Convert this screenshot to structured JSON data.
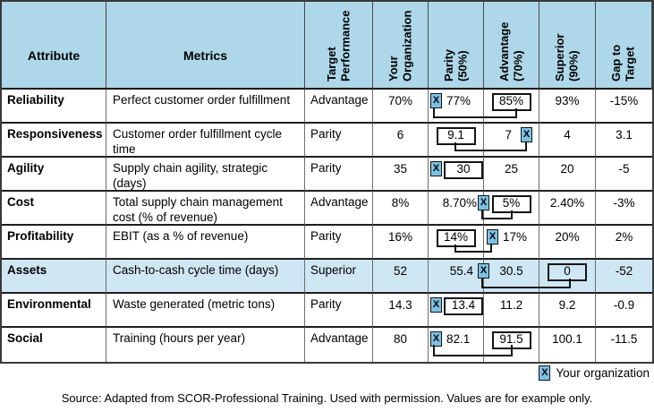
{
  "colors": {
    "header_bg": "#aed7e9",
    "highlight_row_bg": "#cfe6f3",
    "marker_bg": "#7cc1e4"
  },
  "table": {
    "headers": {
      "attribute": "Attribute",
      "metrics": "Metrics",
      "rotated": [
        "Target\nPerformance",
        "Your\nOrganization",
        "Parity\n(50%)",
        "Advantage\n(70%)",
        "Superior\n(90%)",
        "Gap to\nTarget"
      ]
    },
    "rows": [
      {
        "attribute": "Reliability",
        "metric": "Perfect customer order fulfillment",
        "target": "Advantage",
        "your_org": "70%",
        "parity": "77%",
        "advantage": "85%",
        "superior": "93%",
        "gap": "-15%",
        "your_position": "parity",
        "marker_side": "left",
        "target_box": "advantage",
        "highlighted": false
      },
      {
        "attribute": "Responsiveness",
        "metric": "Customer order fulfillment cycle time",
        "target": "Parity",
        "your_org": "6",
        "parity": "9.1",
        "advantage": "7",
        "superior": "4",
        "gap": "3.1",
        "your_position": "advantage",
        "marker_side": "right",
        "target_box": "parity",
        "highlighted": false
      },
      {
        "attribute": "Agility",
        "metric": "Supply chain agility, strategic (days)",
        "target": "Parity",
        "your_org": "35",
        "parity": "30",
        "advantage": "25",
        "superior": "20",
        "gap": "-5",
        "your_position": "parity",
        "marker_side": "left",
        "target_box": "parity",
        "highlighted": false
      },
      {
        "attribute": "Cost",
        "metric": "Total supply chain management cost (% of revenue)",
        "target": "Advantage",
        "your_org": "8%",
        "parity": "8.70%",
        "advantage": "5%",
        "superior": "2.40%",
        "gap": "-3%",
        "your_position": "parity",
        "marker_side": "right",
        "target_box": "advantage",
        "highlighted": false
      },
      {
        "attribute": "Profitability",
        "metric": "EBIT (as a % of revenue)",
        "target": "Parity",
        "your_org": "16%",
        "parity": "14%",
        "advantage": "17%",
        "superior": "20%",
        "gap": "2%",
        "your_position": "advantage",
        "marker_side": "left",
        "target_box": "parity",
        "highlighted": false
      },
      {
        "attribute": "Assets",
        "metric": "Cash-to-cash cycle time (days)",
        "target": "Superior",
        "your_org": "52",
        "parity": "55.4",
        "advantage": "30.5",
        "superior": "0",
        "gap": "-52",
        "your_position": "parity",
        "marker_side": "right",
        "target_box": "superior",
        "highlighted": true
      },
      {
        "attribute": "Environmental",
        "metric": "Waste generated (metric tons)",
        "target": "Parity",
        "your_org": "14.3",
        "parity": "13.4",
        "advantage": "11.2",
        "superior": "9.2",
        "gap": "-0.9",
        "your_position": "parity",
        "marker_side": "left",
        "target_box": "parity",
        "highlighted": false
      },
      {
        "attribute": "Social",
        "metric": "Training (hours per year)",
        "target": "Advantage",
        "your_org": "80",
        "parity": "82.1",
        "advantage": "91.5",
        "superior": "100.1",
        "gap": "-11.5",
        "your_position": "parity",
        "marker_side": "left",
        "target_box": "advantage",
        "highlighted": false
      }
    ]
  },
  "legend": {
    "marker": "X",
    "label": "Your organization"
  },
  "source": {
    "text": "Source: Adapted from SCOR-Professional Training. Used with permission. Values are for example only."
  }
}
